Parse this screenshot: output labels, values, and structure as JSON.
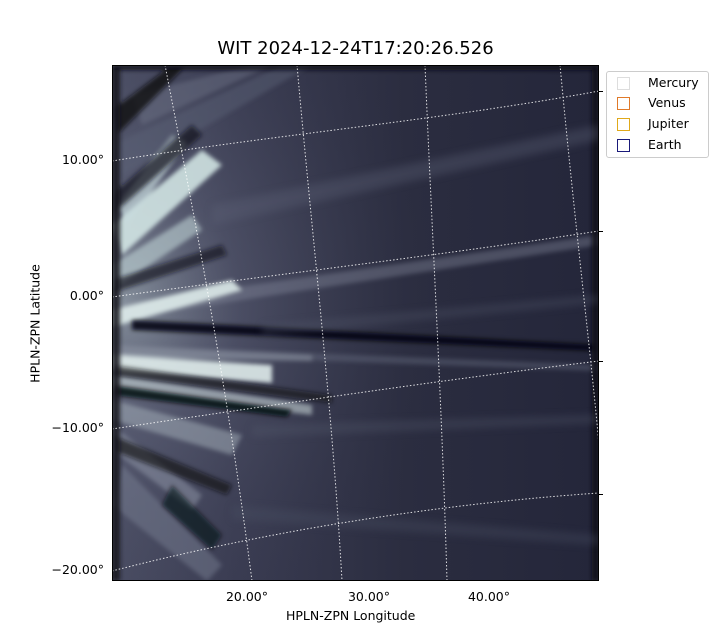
{
  "title": "WIT 2024-12-24T17:20:26.526",
  "image": {
    "description_icon": "heliospheric-white-light-image",
    "colormap": "bone"
  },
  "axes": {
    "xlabel": "HPLN-ZPN Longitude",
    "ylabel": "HPLN-ZPN Latitude",
    "x_ticks": [
      "20.00°",
      "30.00°",
      "40.00°"
    ],
    "y_ticks": [
      "10.00°",
      "0.00°",
      "−10.00°",
      "−20.00°"
    ]
  },
  "legend": {
    "items": [
      {
        "label": "Mercury",
        "color": "#dddddd"
      },
      {
        "label": "Venus",
        "color": "#e07a2a"
      },
      {
        "label": "Jupiter",
        "color": "#e0a91a"
      },
      {
        "label": "Earth",
        "color": "#1a1a7a"
      }
    ]
  }
}
